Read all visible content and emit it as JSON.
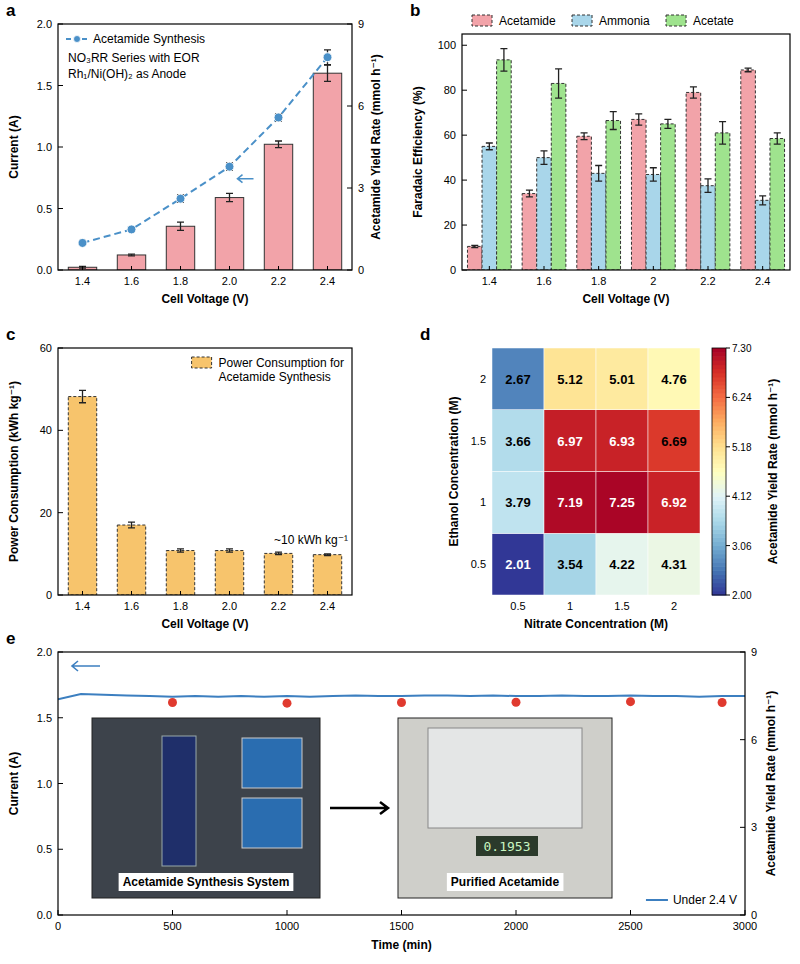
{
  "chart_data": [
    {
      "panel": "a",
      "type": "bar",
      "x_label": "Cell Voltage (V)",
      "y_label": "Current (A)",
      "y2_label": "Acetamide Yield Rate (mmol h⁻¹)",
      "annotations": [
        "NO₃RR Series with EOR",
        "Rh₁/Ni(OH)₂ as Anode"
      ],
      "categories": [
        "1.4",
        "1.6",
        "1.8",
        "2.0",
        "2.2",
        "2.4"
      ],
      "ylim": [
        0,
        2
      ],
      "yticks": [
        {
          "value": 0,
          "label": "0.0"
        },
        0.5,
        {
          "value": 1,
          "label": "1.0"
        },
        1.5,
        {
          "value": 2,
          "label": "2.0"
        }
      ],
      "y2lim": [
        0,
        9
      ],
      "y2ticks": [
        0,
        3,
        6,
        9
      ],
      "legend": "upper left",
      "series": [
        {
          "name": "Acetamide Synthesis",
          "type": "line",
          "color": "#4a90c8",
          "marker": "circle",
          "line_style": "dashed",
          "values": [
            0.22,
            0.33,
            0.58,
            0.84,
            1.24,
            1.73
          ],
          "errors": [
            0.02,
            0.02,
            0.03,
            0.03,
            0.03,
            0.06
          ]
        },
        {
          "type": "bar",
          "axis": "y2",
          "color": "#f2a3a9",
          "values": [
            0.1,
            0.55,
            1.6,
            2.65,
            4.6,
            7.2
          ],
          "errors": [
            0.03,
            0.03,
            0.15,
            0.15,
            0.12,
            0.3
          ]
        }
      ]
    },
    {
      "panel": "b",
      "type": "bar",
      "x_label": "Cell Voltage (V)",
      "y_label": "Faradaic Efficiency (%)",
      "categories": [
        "1.4",
        "1.6",
        "1.8",
        "2",
        "2.2",
        "2.4"
      ],
      "ylim": [
        0,
        105
      ],
      "yticks": [
        0,
        20,
        40,
        60,
        80,
        100
      ],
      "legend": "top",
      "series": [
        {
          "name": "Acetamide",
          "color": "#f2a3a9",
          "line_style": "dashed",
          "values": [
            10.5,
            34,
            59.5,
            67,
            79,
            89
          ],
          "errors": [
            0.5,
            1.5,
            1.5,
            2.5,
            2.5,
            0.8
          ]
        },
        {
          "name": "Ammonia",
          "color": "#a9d6ea",
          "line_style": "dashed",
          "values": [
            55,
            50,
            43,
            42.5,
            37.5,
            31
          ],
          "errors": [
            1.5,
            3,
            3.5,
            3,
            3,
            2
          ]
        },
        {
          "name": "Acetate",
          "color": "#9fe38e",
          "line_style": "dashed",
          "values": [
            93.5,
            83,
            66.5,
            65,
            61,
            58.5
          ],
          "errors": [
            5,
            6.5,
            4,
            2,
            5,
            2.5
          ]
        }
      ]
    },
    {
      "panel": "c",
      "type": "bar",
      "x_label": "Cell Voltage (V)",
      "y_label": "Power Consumption (kWh kg⁻¹)",
      "categories": [
        "1.4",
        "1.6",
        "1.8",
        "2.0",
        "2.2",
        "2.4"
      ],
      "ylim": [
        0,
        60
      ],
      "yticks": [
        0,
        20,
        40,
        60
      ],
      "legend": "upper right",
      "annotations": [
        "~10 kWh kg⁻¹"
      ],
      "series": [
        {
          "name": "Power Consumption for Acetamide Synthesis",
          "color": "#f7c46c",
          "line_style": "dashed",
          "values": [
            48.2,
            17,
            10.8,
            10.8,
            10.1,
            9.8
          ],
          "errors": [
            1.5,
            0.7,
            0.4,
            0.4,
            0.3,
            0.2
          ]
        }
      ]
    },
    {
      "panel": "d",
      "type": "heatmap",
      "x_label": "Nitrate Concentration (M)",
      "y_label": "Ethanol Concentration (M)",
      "x": [
        0.5,
        1,
        1.5,
        2
      ],
      "y": [
        0.5,
        1,
        1.5,
        2
      ],
      "cells": [
        [
          2.01,
          3.54,
          4.22,
          4.31
        ],
        [
          3.79,
          7.19,
          7.25,
          6.92
        ],
        [
          3.66,
          6.97,
          6.93,
          6.69
        ],
        [
          2.67,
          5.12,
          5.01,
          4.76
        ]
      ],
      "colorbar_label": "Acetamide Yield Rate (mmol h⁻¹)",
      "colorbar_range": [
        2,
        7.3
      ],
      "colorbar_ticks": [
        {
          "value": 2,
          "label": "2.00"
        },
        3.06,
        4.12,
        5.18,
        6.24,
        {
          "value": 7.3,
          "label": "7.30"
        }
      ],
      "data_labels": true
    },
    {
      "panel": "e",
      "type": "line",
      "x_label": "Time (min)",
      "y_label": "Current (A)",
      "y2_label": "Acetamide Yield Rate (mmol h⁻¹)",
      "xlim": [
        0,
        3000
      ],
      "xticks": [
        0,
        500,
        1000,
        1500,
        2000,
        2500,
        3000
      ],
      "ylim": [
        0,
        2
      ],
      "yticks": [
        {
          "value": 0,
          "label": "0.0"
        },
        0.5,
        {
          "value": 1,
          "label": "1.0"
        },
        1.5,
        {
          "value": 2,
          "label": "2.0"
        }
      ],
      "y2lim": [
        0,
        9
      ],
      "y2ticks": [
        0,
        3,
        6,
        9
      ],
      "legend": "lower right",
      "insets": [
        {
          "label": "Acetamide Synthesis System"
        },
        {
          "label": "Purified Acetamide",
          "display": "0.1953"
        }
      ],
      "series": [
        {
          "name": "Under 2.4 V",
          "type": "line",
          "color": "#3c7fc0",
          "x": [
            0,
            100,
            200,
            300,
            400,
            500,
            600,
            700,
            800,
            900,
            1000,
            1100,
            1200,
            1300,
            1400,
            1500,
            1600,
            1700,
            1800,
            1900,
            2000,
            2100,
            2200,
            2300,
            2400,
            2500,
            2600,
            2700,
            2800,
            2900,
            3000
          ],
          "values": [
            1.64,
            1.68,
            1.675,
            1.67,
            1.665,
            1.66,
            1.665,
            1.66,
            1.665,
            1.66,
            1.665,
            1.66,
            1.665,
            1.67,
            1.665,
            1.665,
            1.67,
            1.67,
            1.665,
            1.67,
            1.665,
            1.665,
            1.67,
            1.665,
            1.665,
            1.67,
            1.665,
            1.665,
            1.66,
            1.665,
            1.665
          ]
        },
        {
          "type": "scatter",
          "axis": "y2",
          "color": "#e03a2f",
          "marker": "circle",
          "x": [
            500,
            1000,
            1500,
            2000,
            2500,
            2900
          ],
          "values": [
            7.27,
            7.25,
            7.27,
            7.28,
            7.3,
            7.27
          ]
        }
      ]
    }
  ]
}
